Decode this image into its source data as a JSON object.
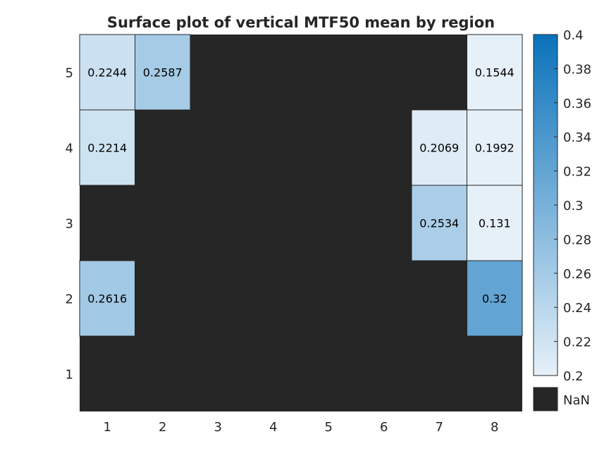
{
  "chart_data": {
    "type": "heatmap",
    "title": "Surface plot of vertical MTF50 mean by region",
    "xlabel": "",
    "ylabel": "",
    "x_categories": [
      "1",
      "2",
      "3",
      "4",
      "5",
      "6",
      "7",
      "8"
    ],
    "y_categories": [
      "1",
      "2",
      "3",
      "4",
      "5"
    ],
    "cells": [
      {
        "x": "1",
        "y": "5",
        "value": 0.2244,
        "label": "0.2244"
      },
      {
        "x": "2",
        "y": "5",
        "value": 0.2587,
        "label": "0.2587"
      },
      {
        "x": "8",
        "y": "5",
        "value": 0.1544,
        "label": "0.1544"
      },
      {
        "x": "1",
        "y": "4",
        "value": 0.2214,
        "label": "0.2214"
      },
      {
        "x": "7",
        "y": "4",
        "value": 0.2069,
        "label": "0.2069"
      },
      {
        "x": "8",
        "y": "4",
        "value": 0.1992,
        "label": "0.1992"
      },
      {
        "x": "7",
        "y": "3",
        "value": 0.2534,
        "label": "0.2534"
      },
      {
        "x": "8",
        "y": "3",
        "value": 0.131,
        "label": "0.131"
      },
      {
        "x": "1",
        "y": "2",
        "value": 0.2616,
        "label": "0.2616"
      },
      {
        "x": "8",
        "y": "2",
        "value": 0.32,
        "label": "0.32"
      }
    ],
    "missing_value_color": "#262626",
    "colorbar": {
      "range": [
        0.2,
        0.4
      ],
      "ticks": [
        "0.2",
        "0.22",
        "0.24",
        "0.26",
        "0.28",
        "0.3",
        "0.32",
        "0.34",
        "0.36",
        "0.38",
        "0.4"
      ],
      "color_low": "#e6f0f9",
      "color_high": "#0a72ba",
      "nan_label": "NaN"
    },
    "grid": false
  }
}
